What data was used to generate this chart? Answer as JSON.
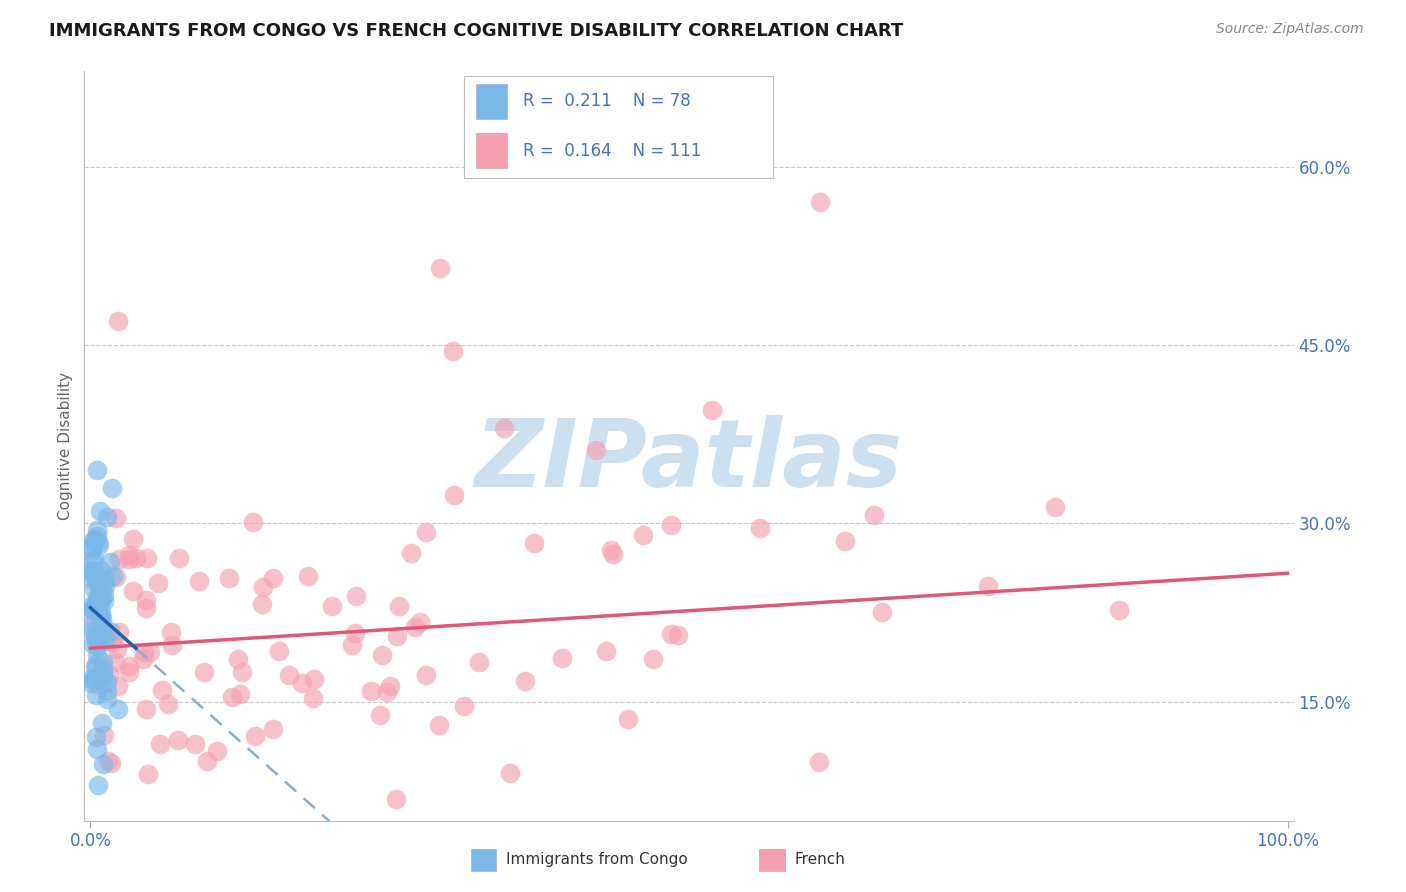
{
  "title": "IMMIGRANTS FROM CONGO VS FRENCH COGNITIVE DISABILITY CORRELATION CHART",
  "source_text": "Source: ZipAtlas.com",
  "ylabel": "Cognitive Disability",
  "xlim": [
    -0.005,
    1.005
  ],
  "ylim": [
    0.05,
    0.68
  ],
  "yticks": [
    0.15,
    0.3,
    0.45,
    0.6
  ],
  "ytick_labels": [
    "15.0%",
    "30.0%",
    "45.0%",
    "60.0%"
  ],
  "xticks": [
    0.0,
    1.0
  ],
  "xtick_labels": [
    "0.0%",
    "100.0%"
  ],
  "legend_blue_r": "R = 0.211",
  "legend_blue_n": "N = 78",
  "legend_pink_r": "R = 0.164",
  "legend_pink_n": "N = 111",
  "blue_scatter_color": "#7ab8e8",
  "pink_scatter_color": "#f4a0b0",
  "blue_line_color": "#2060b0",
  "pink_line_color": "#e05878",
  "dashed_line_color": "#88aadd",
  "watermark": "ZIPatlas",
  "watermark_color": "#cde0f0",
  "background_color": "#ffffff",
  "grid_color": "#c8c8c8",
  "title_fontsize": 13,
  "tick_label_color": "#4472c4",
  "legend_text_color": "#333333",
  "legend_r_color": "#4472c4",
  "legend_n_color": "#e05878",
  "source_color": "#888888"
}
